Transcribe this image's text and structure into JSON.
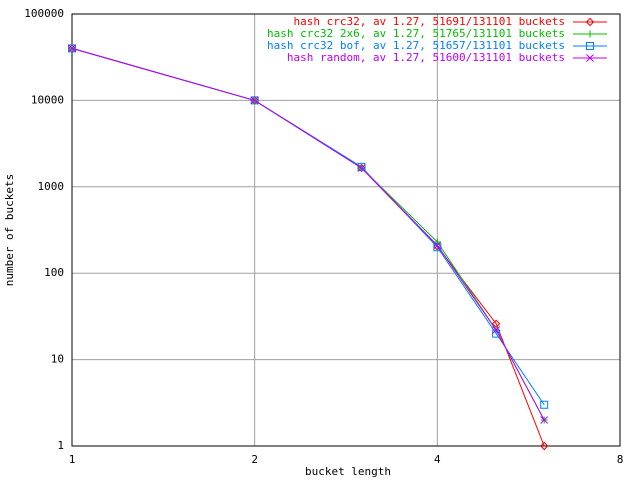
{
  "chart_data": {
    "type": "line",
    "x_label": "bucket length",
    "y_label": "number of buckets",
    "x": [
      1,
      2,
      3,
      4,
      5,
      6
    ],
    "series": [
      {
        "name": "hash crc32, av 1.27, 51691/131101 buckets",
        "color": "#ff0000",
        "marker": "diamond",
        "values": [
          40000,
          10000,
          1650,
          205,
          26,
          1
        ]
      },
      {
        "name": "hash crc32 2x6, av 1.27, 51765/131101 buckets",
        "color": "#00c000",
        "marker": "plus",
        "values": [
          40000,
          10000,
          1650,
          230,
          22,
          2
        ]
      },
      {
        "name": "hash crc32 bof, av 1.27, 51657/131101 buckets",
        "color": "#0080ff",
        "marker": "square",
        "values": [
          40000,
          10000,
          1700,
          200,
          20,
          3
        ]
      },
      {
        "name": "hash random, av 1.27, 51600/131101 buckets",
        "color": "#c000ff",
        "marker": "cross",
        "values": [
          40000,
          10000,
          1650,
          210,
          22,
          2
        ]
      }
    ],
    "xlim": [
      1,
      8
    ],
    "xticks": [
      1,
      2,
      4,
      8
    ],
    "xlog": 2,
    "ylim": [
      1,
      100000
    ],
    "yticks": [
      1,
      10,
      100,
      1000,
      10000,
      100000
    ],
    "ylog": 10,
    "grid": true,
    "legend": "top-right"
  }
}
